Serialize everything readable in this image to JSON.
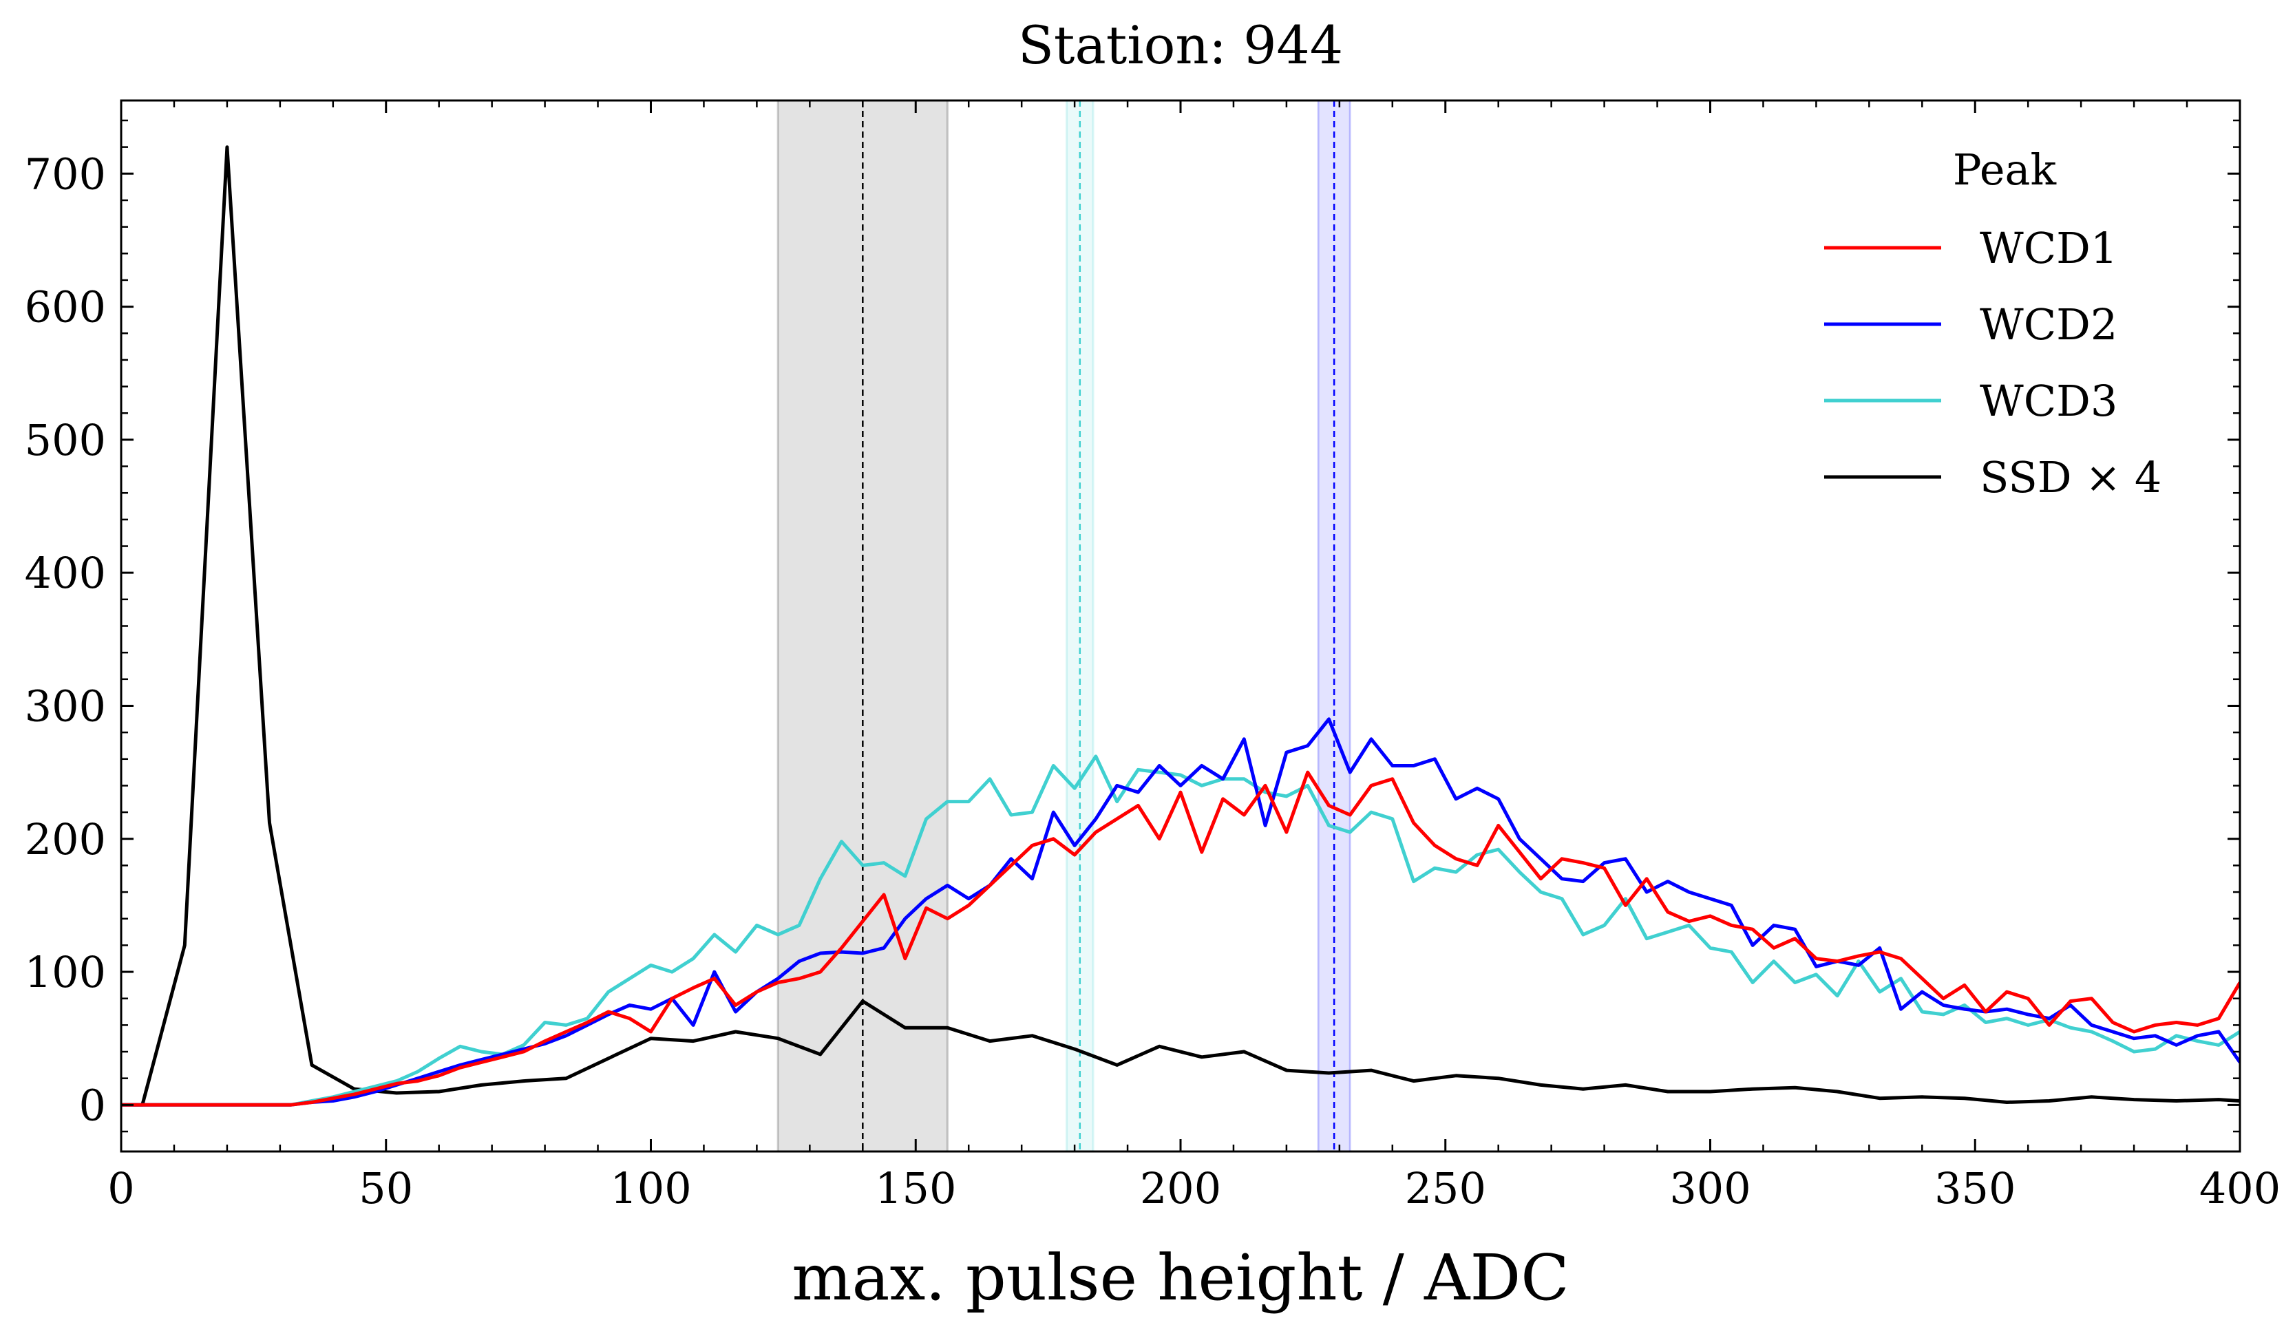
{
  "chart_data": {
    "type": "line",
    "title": "Station: 944",
    "xlabel": "max. pulse height / ADC",
    "ylabel": "",
    "xlim": [
      0,
      400
    ],
    "ylim": [
      -35,
      755
    ],
    "xticks": [
      0,
      50,
      100,
      150,
      200,
      250,
      300,
      350,
      400
    ],
    "yticks": [
      0,
      100,
      200,
      300,
      400,
      500,
      600,
      700
    ],
    "grid": false,
    "legend": {
      "title": "Peak",
      "placement": "top-right"
    },
    "series": [
      {
        "name": "WCD1",
        "color": "#ff0000",
        "x": [
          0,
          4,
          8,
          12,
          16,
          20,
          24,
          28,
          32,
          36,
          40,
          44,
          48,
          52,
          56,
          60,
          64,
          68,
          72,
          76,
          80,
          84,
          88,
          92,
          96,
          100,
          104,
          108,
          112,
          116,
          120,
          124,
          128,
          132,
          136,
          140,
          144,
          148,
          152,
          156,
          160,
          164,
          168,
          172,
          176,
          180,
          184,
          188,
          192,
          196,
          200,
          204,
          208,
          212,
          216,
          220,
          224,
          228,
          232,
          236,
          240,
          244,
          248,
          252,
          256,
          260,
          264,
          268,
          272,
          276,
          280,
          284,
          288,
          292,
          296,
          300,
          304,
          308,
          312,
          316,
          320,
          324,
          328,
          332,
          336,
          340,
          344,
          348,
          352,
          356,
          360,
          364,
          368,
          372,
          376,
          380,
          384,
          388,
          392,
          396,
          400
        ],
        "y": [
          0,
          0,
          0,
          0,
          0,
          0,
          0,
          0,
          0,
          2,
          5,
          8,
          12,
          16,
          18,
          22,
          28,
          32,
          36,
          40,
          48,
          55,
          62,
          70,
          65,
          55,
          80,
          88,
          95,
          75,
          85,
          92,
          95,
          100,
          118,
          138,
          158,
          110,
          148,
          140,
          150,
          165,
          180,
          195,
          200,
          188,
          205,
          215,
          225,
          200,
          235,
          190,
          230,
          218,
          240,
          205,
          250,
          225,
          218,
          240,
          245,
          212,
          195,
          185,
          180,
          210,
          190,
          170,
          185,
          182,
          178,
          150,
          170,
          145,
          138,
          142,
          135,
          132,
          118,
          125,
          110,
          108,
          112,
          115,
          110,
          95,
          80,
          90,
          70,
          85,
          80,
          60,
          78,
          80,
          62,
          55,
          60,
          62,
          60,
          65,
          92
        ]
      },
      {
        "name": "WCD2",
        "color": "#0000ff",
        "x": [
          0,
          4,
          8,
          12,
          16,
          20,
          24,
          28,
          32,
          36,
          40,
          44,
          48,
          52,
          56,
          60,
          64,
          68,
          72,
          76,
          80,
          84,
          88,
          92,
          96,
          100,
          104,
          108,
          112,
          116,
          120,
          124,
          128,
          132,
          136,
          140,
          144,
          148,
          152,
          156,
          160,
          164,
          168,
          172,
          176,
          180,
          184,
          188,
          192,
          196,
          200,
          204,
          208,
          212,
          216,
          220,
          224,
          228,
          232,
          236,
          240,
          244,
          248,
          252,
          256,
          260,
          264,
          268,
          272,
          276,
          280,
          284,
          288,
          292,
          296,
          300,
          304,
          308,
          312,
          316,
          320,
          324,
          328,
          332,
          336,
          340,
          344,
          348,
          352,
          356,
          360,
          364,
          368,
          372,
          376,
          380,
          384,
          388,
          392,
          396,
          400
        ],
        "y": [
          0,
          0,
          0,
          0,
          0,
          0,
          0,
          0,
          0,
          2,
          3,
          6,
          10,
          15,
          20,
          25,
          30,
          34,
          38,
          42,
          46,
          52,
          60,
          68,
          75,
          72,
          80,
          60,
          100,
          70,
          85,
          95,
          108,
          114,
          115,
          114,
          118,
          140,
          155,
          165,
          155,
          165,
          185,
          170,
          220,
          195,
          215,
          240,
          235,
          255,
          240,
          255,
          245,
          275,
          210,
          265,
          270,
          290,
          250,
          275,
          255,
          255,
          260,
          230,
          238,
          230,
          200,
          185,
          170,
          168,
          182,
          185,
          160,
          168,
          160,
          155,
          150,
          120,
          135,
          132,
          104,
          108,
          105,
          118,
          72,
          85,
          75,
          72,
          70,
          72,
          68,
          65,
          75,
          60,
          55,
          50,
          52,
          45,
          52,
          55,
          32
        ]
      },
      {
        "name": "WCD3",
        "color": "#40d0d0",
        "x": [
          0,
          4,
          8,
          12,
          16,
          20,
          24,
          28,
          32,
          36,
          40,
          44,
          48,
          52,
          56,
          60,
          64,
          68,
          72,
          76,
          80,
          84,
          88,
          92,
          96,
          100,
          104,
          108,
          112,
          116,
          120,
          124,
          128,
          132,
          136,
          140,
          144,
          148,
          152,
          156,
          160,
          164,
          168,
          172,
          176,
          180,
          184,
          188,
          192,
          196,
          200,
          204,
          208,
          212,
          216,
          220,
          224,
          228,
          232,
          236,
          240,
          244,
          248,
          252,
          256,
          260,
          264,
          268,
          272,
          276,
          280,
          284,
          288,
          292,
          296,
          300,
          304,
          308,
          312,
          316,
          320,
          324,
          328,
          332,
          336,
          340,
          344,
          348,
          352,
          356,
          360,
          364,
          368,
          372,
          376,
          380,
          384,
          388,
          392,
          396,
          400
        ],
        "y": [
          0,
          0,
          0,
          0,
          0,
          0,
          0,
          0,
          0,
          3,
          6,
          10,
          14,
          18,
          25,
          35,
          44,
          40,
          38,
          45,
          62,
          60,
          65,
          85,
          95,
          105,
          100,
          110,
          128,
          115,
          135,
          128,
          135,
          170,
          198,
          180,
          182,
          172,
          215,
          228,
          228,
          245,
          218,
          220,
          255,
          238,
          262,
          228,
          252,
          250,
          248,
          240,
          245,
          245,
          235,
          232,
          240,
          210,
          205,
          220,
          215,
          168,
          178,
          175,
          188,
          192,
          175,
          160,
          155,
          128,
          135,
          155,
          125,
          130,
          135,
          118,
          115,
          92,
          108,
          92,
          98,
          82,
          108,
          85,
          95,
          70,
          68,
          75,
          62,
          65,
          60,
          64,
          58,
          55,
          48,
          40,
          42,
          52,
          48,
          45,
          55
        ]
      },
      {
        "name": "SSD × 4",
        "color": "#000000",
        "x": [
          0,
          4,
          12,
          20,
          28,
          36,
          44,
          52,
          60,
          68,
          76,
          84,
          92,
          100,
          108,
          116,
          124,
          132,
          140,
          148,
          156,
          164,
          172,
          180,
          188,
          196,
          204,
          212,
          220,
          228,
          236,
          244,
          252,
          260,
          268,
          276,
          284,
          292,
          300,
          308,
          316,
          324,
          332,
          340,
          348,
          356,
          364,
          372,
          380,
          388,
          396,
          400
        ],
        "y": [
          0,
          0,
          120,
          720,
          212,
          30,
          12,
          9,
          10,
          15,
          18,
          20,
          35,
          50,
          48,
          55,
          50,
          38,
          78,
          58,
          58,
          48,
          52,
          42,
          30,
          44,
          36,
          40,
          26,
          24,
          26,
          18,
          22,
          20,
          15,
          12,
          15,
          10,
          10,
          12,
          13,
          10,
          5,
          6,
          5,
          2,
          3,
          6,
          4,
          3,
          4,
          3
        ]
      }
    ],
    "bands": [
      {
        "center": 140,
        "lo": 124,
        "hi": 156,
        "color": "#000000"
      },
      {
        "center": 181,
        "lo": 178.5,
        "hi": 183.5,
        "color": "#40d0d0"
      },
      {
        "center": 229,
        "lo": 226,
        "hi": 232,
        "color": "#0000ff"
      }
    ]
  }
}
